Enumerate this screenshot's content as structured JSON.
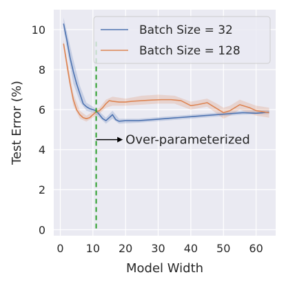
{
  "chart_data": {
    "type": "line",
    "xlabel": "Model Width",
    "ylabel": "Test Error (%)",
    "xlim": [
      -2,
      66
    ],
    "ylim": [
      -0.3,
      11.0
    ],
    "xticks": [
      0,
      10,
      20,
      30,
      40,
      50,
      60
    ],
    "yticks": [
      0,
      2,
      4,
      6,
      8,
      10
    ],
    "grid": true,
    "legend_position": "top-right",
    "series": [
      {
        "name": "Batch Size = 32",
        "color": "#4c72b0",
        "points": [
          [
            1,
            10.3
          ],
          [
            2,
            9.5
          ],
          [
            3,
            8.6
          ],
          [
            4,
            7.9
          ],
          [
            5,
            7.3
          ],
          [
            6,
            6.8
          ],
          [
            7,
            6.3
          ],
          [
            8,
            6.15
          ],
          [
            9,
            6.05
          ],
          [
            10,
            6.0
          ],
          [
            11,
            5.95
          ],
          [
            12,
            5.75
          ],
          [
            13,
            5.55
          ],
          [
            14,
            5.45
          ],
          [
            15,
            5.6
          ],
          [
            16,
            5.75
          ],
          [
            17,
            5.5
          ],
          [
            18,
            5.42
          ],
          [
            20,
            5.45
          ],
          [
            24,
            5.45
          ],
          [
            28,
            5.5
          ],
          [
            32,
            5.55
          ],
          [
            36,
            5.6
          ],
          [
            40,
            5.65
          ],
          [
            44,
            5.7
          ],
          [
            48,
            5.75
          ],
          [
            52,
            5.8
          ],
          [
            56,
            5.85
          ],
          [
            60,
            5.82
          ],
          [
            64,
            5.88
          ]
        ],
        "band": [
          [
            1,
            10.0,
            10.6
          ],
          [
            2,
            9.1,
            9.9
          ],
          [
            4,
            7.3,
            8.5
          ],
          [
            6,
            6.4,
            7.2
          ],
          [
            8,
            5.95,
            6.35
          ],
          [
            10,
            5.85,
            6.15
          ],
          [
            12,
            5.6,
            5.9
          ],
          [
            14,
            5.3,
            5.6
          ],
          [
            16,
            5.55,
            5.95
          ],
          [
            18,
            5.3,
            5.55
          ],
          [
            24,
            5.35,
            5.55
          ],
          [
            32,
            5.45,
            5.65
          ],
          [
            40,
            5.55,
            5.75
          ],
          [
            48,
            5.65,
            5.85
          ],
          [
            56,
            5.75,
            5.95
          ],
          [
            64,
            5.78,
            5.98
          ]
        ]
      },
      {
        "name": "Batch Size = 128",
        "color": "#dd8452",
        "points": [
          [
            1,
            9.3
          ],
          [
            2,
            8.3
          ],
          [
            3,
            7.3
          ],
          [
            4,
            6.5
          ],
          [
            5,
            6.0
          ],
          [
            6,
            5.75
          ],
          [
            7,
            5.6
          ],
          [
            8,
            5.55
          ],
          [
            9,
            5.6
          ],
          [
            10,
            5.75
          ],
          [
            11,
            5.9
          ],
          [
            12,
            5.95
          ],
          [
            13,
            6.1
          ],
          [
            14,
            6.3
          ],
          [
            15,
            6.45
          ],
          [
            16,
            6.42
          ],
          [
            18,
            6.38
          ],
          [
            20,
            6.38
          ],
          [
            22,
            6.42
          ],
          [
            25,
            6.45
          ],
          [
            28,
            6.48
          ],
          [
            31,
            6.5
          ],
          [
            34,
            6.5
          ],
          [
            37,
            6.45
          ],
          [
            40,
            6.2
          ],
          [
            42,
            6.25
          ],
          [
            45,
            6.35
          ],
          [
            48,
            6.05
          ],
          [
            50,
            5.85
          ],
          [
            52,
            5.95
          ],
          [
            55,
            6.25
          ],
          [
            58,
            6.1
          ],
          [
            60,
            5.95
          ],
          [
            62,
            5.9
          ],
          [
            64,
            5.85
          ]
        ],
        "band": [
          [
            1,
            9.1,
            9.5
          ],
          [
            2,
            8.0,
            8.6
          ],
          [
            4,
            6.2,
            6.8
          ],
          [
            6,
            5.55,
            5.95
          ],
          [
            8,
            5.4,
            5.7
          ],
          [
            10,
            5.6,
            5.9
          ],
          [
            12,
            5.8,
            6.1
          ],
          [
            14,
            6.1,
            6.5
          ],
          [
            16,
            6.2,
            6.65
          ],
          [
            20,
            6.2,
            6.55
          ],
          [
            25,
            6.25,
            6.7
          ],
          [
            30,
            6.3,
            6.75
          ],
          [
            35,
            6.3,
            6.7
          ],
          [
            40,
            6.0,
            6.4
          ],
          [
            45,
            6.15,
            6.55
          ],
          [
            48,
            5.8,
            6.3
          ],
          [
            50,
            5.55,
            6.1
          ],
          [
            52,
            5.7,
            6.2
          ],
          [
            55,
            6.0,
            6.5
          ],
          [
            60,
            5.7,
            6.2
          ],
          [
            64,
            5.6,
            6.1
          ]
        ]
      }
    ],
    "vline": {
      "x": 11,
      "color": "#2ca02c"
    },
    "annotation": {
      "text": "Over-parameterized",
      "arrow_from": [
        11,
        4.5
      ],
      "arrow_to": [
        20,
        4.5
      ]
    }
  }
}
